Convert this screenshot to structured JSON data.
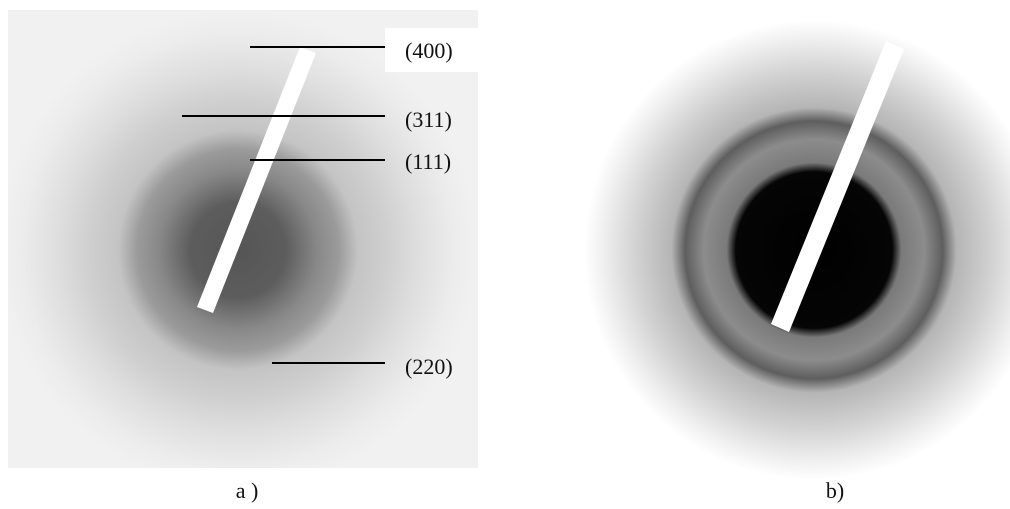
{
  "panels": [
    {
      "caption": "a )",
      "annotations": [
        "(400)",
        "(311)",
        "(111)",
        "(220)"
      ]
    },
    {
      "caption": "b)"
    }
  ]
}
